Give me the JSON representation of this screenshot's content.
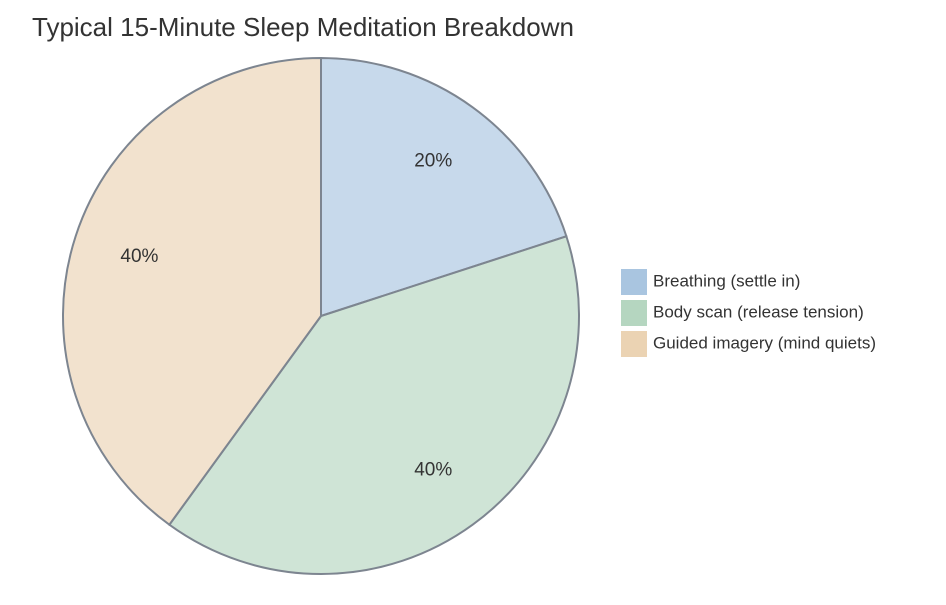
{
  "chart_data": {
    "type": "pie",
    "title": "Typical 15-Minute Sleep Meditation Breakdown",
    "categories": [
      "Breathing (settle in)",
      "Body scan (release tension)",
      "Guided imagery (mind quiets)"
    ],
    "values": [
      20,
      40,
      40
    ],
    "value_labels": [
      "20%",
      "40%",
      "40%"
    ],
    "colors": [
      "#a9c5e0",
      "#b5d6c0",
      "#ebd3b3"
    ],
    "legend": "right"
  }
}
